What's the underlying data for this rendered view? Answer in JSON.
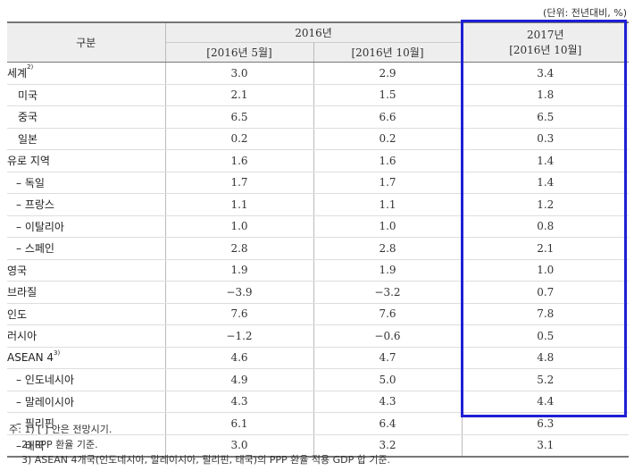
{
  "unit_note": "(단위: 전년대비, %)",
  "header": {
    "category": "구분",
    "year_2016": "2016년",
    "may_2016": "[2016년 5월]",
    "oct_2016": "[2016년 10월]",
    "year_2017": "2017년",
    "oct_2016_2017": "[2016년 10월]"
  },
  "rows": [
    {
      "name": "세계",
      "sup": "2)",
      "may": "3.0",
      "oct": "2.9",
      "y2017": "3.4"
    },
    {
      "name": "미국",
      "sup": "",
      "may": "2.1",
      "oct": "1.5",
      "y2017": "1.8"
    },
    {
      "name": "중국",
      "sup": "",
      "may": "6.5",
      "oct": "6.6",
      "y2017": "6.5"
    },
    {
      "name": "일본",
      "sup": "",
      "may": "0.2",
      "oct": "0.2",
      "y2017": "0.3"
    },
    {
      "name": "유로 지역",
      "sup": "",
      "may": "1.6",
      "oct": "1.6",
      "y2017": "1.4"
    },
    {
      "name": "– 독일",
      "sup": "",
      "may": "1.7",
      "oct": "1.7",
      "y2017": "1.4"
    },
    {
      "name": "– 프랑스",
      "sup": "",
      "may": "1.1",
      "oct": "1.1",
      "y2017": "1.2"
    },
    {
      "name": "– 이탈리아",
      "sup": "",
      "may": "1.0",
      "oct": "1.0",
      "y2017": "0.8"
    },
    {
      "name": "– 스페인",
      "sup": "",
      "may": "2.8",
      "oct": "2.8",
      "y2017": "2.1"
    },
    {
      "name": "영국",
      "sup": "",
      "may": "1.9",
      "oct": "1.9",
      "y2017": "1.0"
    },
    {
      "name": "브라질",
      "sup": "",
      "may": "−3.9",
      "oct": "−3.2",
      "y2017": "0.7"
    },
    {
      "name": "인도",
      "sup": "",
      "may": "7.6",
      "oct": "7.6",
      "y2017": "7.8"
    },
    {
      "name": "러시아",
      "sup": "",
      "may": "−1.2",
      "oct": "−0.6",
      "y2017": "0.5"
    },
    {
      "name": "ASEAN 4",
      "sup": "3)",
      "may": "4.6",
      "oct": "4.7",
      "y2017": "4.8"
    },
    {
      "name": "– 인도네시아",
      "sup": "",
      "may": "4.9",
      "oct": "5.0",
      "y2017": "5.2"
    },
    {
      "name": "– 말레이시아",
      "sup": "",
      "may": "4.3",
      "oct": "4.3",
      "y2017": "4.4"
    },
    {
      "name": "– 필리핀",
      "sup": "",
      "may": "6.1",
      "oct": "6.4",
      "y2017": "6.3"
    },
    {
      "name": "– 태국",
      "sup": "",
      "may": "3.0",
      "oct": "3.2",
      "y2017": "3.1"
    }
  ],
  "notes": {
    "n1": "주: 1) [ ] 안은 전망시기.",
    "n2": "2) PPP 환율 기준.",
    "n3": "3) ASEAN 4개국(인도네시아, 말레이시아, 필리핀, 태국)의 PPP 환율 적용 GDP 합 기준."
  },
  "colors": {
    "highlight_border": "#1f1fd6",
    "header_bg": "#eeeeee"
  }
}
